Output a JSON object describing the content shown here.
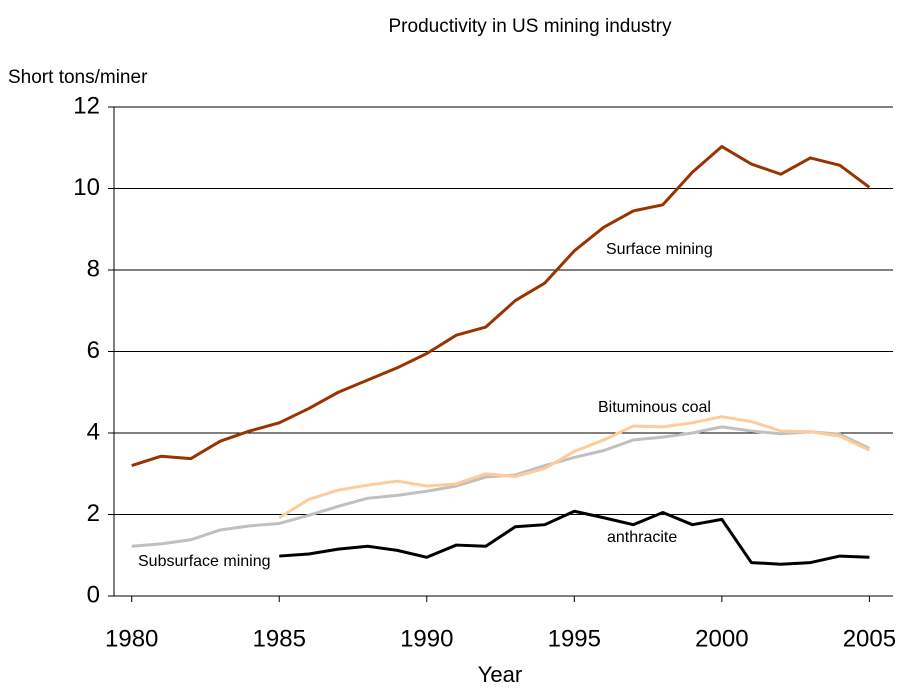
{
  "chart_data": {
    "type": "line",
    "title": "Productivity in US mining industry",
    "x_label": "Year",
    "y_label": "Short tons/miner",
    "x": [
      1980,
      1981,
      1982,
      1983,
      1984,
      1985,
      1986,
      1987,
      1988,
      1989,
      1990,
      1991,
      1992,
      1993,
      1994,
      1995,
      1996,
      1997,
      1998,
      1999,
      2000,
      2001,
      2002,
      2003,
      2004,
      2005
    ],
    "series": [
      {
        "name": "Surface mining",
        "color": "#993300",
        "values": [
          3.2,
          3.43,
          3.37,
          3.8,
          4.05,
          4.25,
          4.6,
          5.0,
          5.3,
          5.6,
          5.95,
          6.4,
          6.6,
          7.25,
          7.68,
          8.47,
          9.05,
          9.45,
          9.6,
          10.4,
          11.03,
          10.6,
          10.35,
          10.75,
          10.57,
          10.03
        ]
      },
      {
        "name": "Subsurface mining",
        "color": "#c0c0c0",
        "values": [
          1.22,
          1.28,
          1.38,
          1.62,
          1.72,
          1.78,
          1.98,
          2.2,
          2.4,
          2.47,
          2.57,
          2.7,
          2.92,
          2.97,
          3.2,
          3.4,
          3.57,
          3.83,
          3.9,
          4.0,
          4.15,
          4.05,
          3.98,
          4.03,
          3.97,
          3.62
        ]
      },
      {
        "name": "Bituminous coal",
        "color": "#ffcc99",
        "values": [
          null,
          null,
          null,
          null,
          null,
          1.92,
          2.37,
          2.6,
          2.72,
          2.82,
          2.7,
          2.75,
          3.0,
          2.93,
          3.13,
          3.55,
          3.83,
          4.17,
          4.15,
          4.25,
          4.4,
          4.28,
          4.05,
          4.03,
          3.92,
          3.58
        ]
      },
      {
        "name": "anthracite",
        "color": "#000000",
        "values": [
          null,
          null,
          null,
          null,
          null,
          0.98,
          1.03,
          1.15,
          1.22,
          1.12,
          0.95,
          1.25,
          1.22,
          1.7,
          1.75,
          2.08,
          1.92,
          1.75,
          2.05,
          1.75,
          1.88,
          0.82,
          0.78,
          0.82,
          0.98,
          0.95
        ]
      }
    ],
    "xlim": [
      1979.4,
      2005.8
    ],
    "xticks": [
      1980,
      1985,
      1990,
      1995,
      2000,
      2005
    ],
    "ylim": [
      0,
      12
    ],
    "yticks": [
      0,
      2,
      4,
      6,
      8,
      10,
      12
    ],
    "grid": true
  }
}
